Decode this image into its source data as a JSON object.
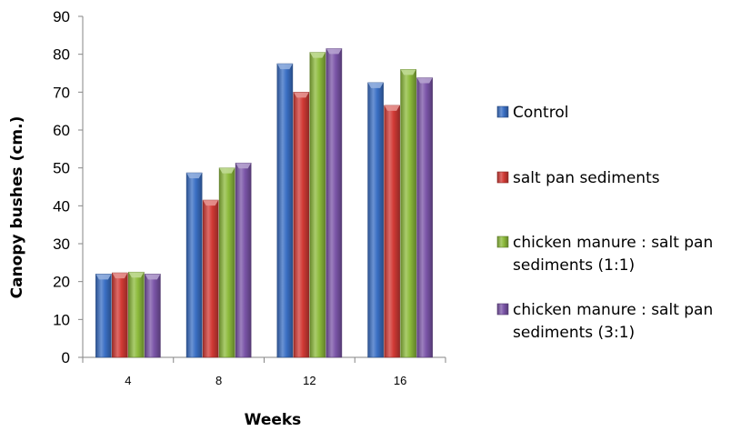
{
  "chart_data": {
    "type": "bar",
    "title": "",
    "xlabel": "Weeks",
    "ylabel": "Canopy bushes (cm.)",
    "categories": [
      "4",
      "8",
      "12",
      "16"
    ],
    "ylim": [
      0,
      90
    ],
    "yticks": [
      "0",
      "10",
      "20",
      "30",
      "40",
      "50",
      "60",
      "70",
      "80",
      "90"
    ],
    "grid": false,
    "legend_position": "right",
    "bar_style": "3d-shaded",
    "series": [
      {
        "name": "Control",
        "color": "#3A6FC4",
        "values": [
          22,
          48.7,
          77.5,
          72.5
        ]
      },
      {
        "name": "salt pan sediments",
        "color": "#D23A35",
        "values": [
          22.3,
          41.5,
          70,
          66.5
        ]
      },
      {
        "name": "chicken manure : salt pan sediments (1:1)",
        "legend_lines": [
          "chicken manure : salt pan",
          "sediments (1:1)"
        ],
        "color": "#8DBB3C",
        "values": [
          22.5,
          50,
          80.5,
          76
        ]
      },
      {
        "name": "chicken manure : salt pan sediments (3:1)",
        "legend_lines": [
          "chicken manure : salt pan",
          "sediments (3:1)"
        ],
        "color": "#7B55A8",
        "values": [
          22,
          51.3,
          81.5,
          73.8
        ]
      }
    ]
  }
}
